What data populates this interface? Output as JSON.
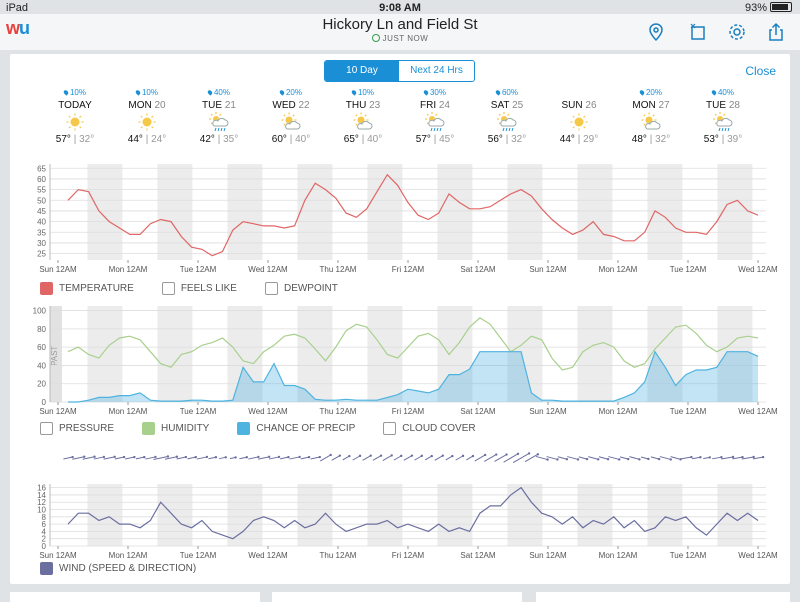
{
  "status": {
    "device": "iPad",
    "time": "9:08 AM",
    "battery": "93%"
  },
  "header": {
    "title": "Hickory Ln and Field St",
    "subtitle": "JUST NOW",
    "logo_w": "w",
    "logo_u": "u"
  },
  "tabs": {
    "ten_day": "10 Day",
    "next24": "Next 24 Hrs",
    "close": "Close"
  },
  "days": [
    {
      "name": "TODAY",
      "num": "",
      "pop": "10%",
      "hi": "57°",
      "lo": "32°",
      "icon": "sunny"
    },
    {
      "name": "MON",
      "num": "20",
      "pop": "10%",
      "hi": "44°",
      "lo": "24°",
      "icon": "sunny"
    },
    {
      "name": "TUE",
      "num": "21",
      "pop": "40%",
      "hi": "42°",
      "lo": "35°",
      "icon": "rain"
    },
    {
      "name": "WED",
      "num": "22",
      "pop": "20%",
      "hi": "60°",
      "lo": "40°",
      "icon": "partly"
    },
    {
      "name": "THU",
      "num": "23",
      "pop": "10%",
      "hi": "65°",
      "lo": "40°",
      "icon": "partly"
    },
    {
      "name": "FRI",
      "num": "24",
      "pop": "30%",
      "hi": "57°",
      "lo": "45°",
      "icon": "rain"
    },
    {
      "name": "SAT",
      "num": "25",
      "pop": "60%",
      "hi": "56°",
      "lo": "32°",
      "icon": "rain"
    },
    {
      "name": "SUN",
      "num": "26",
      "pop": "",
      "hi": "44°",
      "lo": "29°",
      "icon": "sunny"
    },
    {
      "name": "MON",
      "num": "27",
      "pop": "20%",
      "hi": "48°",
      "lo": "32°",
      "icon": "partly"
    },
    {
      "name": "TUE",
      "num": "28",
      "pop": "40%",
      "hi": "53°",
      "lo": "39°",
      "icon": "rain"
    }
  ],
  "xticks": [
    "Sun 12AM",
    "Mon 12AM",
    "Tue 12AM",
    "Wed 12AM",
    "Thu 12AM",
    "Fri 12AM",
    "Sat 12AM",
    "Sun 12AM",
    "Mon 12AM",
    "Tue 12AM",
    "Wed 12AM"
  ],
  "past_label": "PAST",
  "colors": {
    "temperature": "#e06666",
    "humidity": "#a8d08d",
    "precip": "#4fb3e0",
    "wind": "#6b6fa0",
    "accent": "#1a8fd6"
  },
  "chart_data": [
    {
      "type": "line",
      "title": "",
      "yticks": [
        25,
        30,
        35,
        40,
        45,
        50,
        55,
        60,
        65
      ],
      "ylim": [
        22,
        67
      ],
      "legend": [
        "TEMPERATURE",
        "FEELS LIKE",
        "DEWPOINT"
      ],
      "series": [
        {
          "name": "TEMPERATURE",
          "values": [
            50,
            55,
            54,
            45,
            40,
            37,
            34,
            34,
            39,
            41,
            40,
            33,
            28,
            27,
            24,
            26,
            36,
            40,
            39,
            38,
            38,
            37,
            38,
            50,
            58,
            55,
            51,
            44,
            42,
            46,
            54,
            62,
            57,
            49,
            43,
            41,
            44,
            53,
            49,
            46,
            46,
            47,
            50,
            53,
            55,
            52,
            46,
            41,
            37,
            34,
            36,
            40,
            34,
            33,
            31,
            31,
            35,
            45,
            42,
            37,
            35,
            35,
            34,
            40,
            48,
            50,
            45,
            43
          ]
        }
      ]
    },
    {
      "type": "area",
      "title": "",
      "yticks": [
        0,
        20,
        40,
        60,
        80,
        100
      ],
      "ylim": [
        0,
        105
      ],
      "legend": [
        "PRESSURE",
        "HUMIDITY",
        "CHANCE OF PRECIP",
        "CLOUD COVER"
      ],
      "series": [
        {
          "name": "HUMIDITY",
          "values": [
            55,
            60,
            52,
            48,
            62,
            70,
            72,
            68,
            55,
            42,
            38,
            52,
            55,
            62,
            65,
            70,
            60,
            45,
            42,
            55,
            62,
            72,
            74,
            70,
            58,
            45,
            60,
            78,
            85,
            82,
            68,
            52,
            48,
            60,
            72,
            75,
            68,
            52,
            65,
            82,
            92,
            85,
            70,
            55,
            62,
            72,
            68,
            48,
            35,
            38,
            55,
            62,
            65,
            60,
            45,
            38,
            42,
            58,
            70,
            82,
            84,
            75,
            62,
            55,
            60,
            70,
            72,
            70
          ]
        },
        {
          "name": "CHANCE OF PRECIP",
          "values": [
            0,
            0,
            2,
            5,
            5,
            7,
            7,
            10,
            2,
            1,
            1,
            1,
            2,
            2,
            1,
            1,
            2,
            38,
            22,
            22,
            42,
            18,
            18,
            14,
            3,
            2,
            2,
            3,
            2,
            2,
            2,
            5,
            8,
            14,
            12,
            10,
            14,
            30,
            30,
            36,
            55,
            55,
            55,
            55,
            55,
            10,
            2,
            2,
            1,
            1,
            1,
            1,
            1,
            1,
            5,
            10,
            22,
            55,
            38,
            18,
            30,
            35,
            35,
            38,
            55,
            55,
            55,
            50
          ]
        }
      ]
    },
    {
      "type": "line",
      "title": "",
      "yticks": [
        0,
        2,
        4,
        6,
        8,
        10,
        12,
        14,
        16
      ],
      "ylim": [
        0,
        17
      ],
      "legend": [
        "WIND (SPEED & DIRECTION)"
      ],
      "series": [
        {
          "name": "WIND (SPEED & DIRECTION)",
          "values": [
            6,
            9,
            9,
            7,
            8,
            6,
            6,
            5,
            7,
            12,
            9,
            6,
            5,
            7,
            4,
            3,
            2,
            4,
            7,
            8,
            7,
            5,
            7,
            5,
            6,
            9,
            6,
            4,
            5,
            6,
            6,
            7,
            5,
            6,
            5,
            4,
            6,
            4,
            5,
            4,
            9,
            11,
            11,
            14,
            16,
            12,
            9,
            8,
            6,
            8,
            5,
            7,
            6,
            8,
            5,
            7,
            4,
            5,
            8,
            7,
            8,
            5,
            3,
            6,
            9,
            7,
            9,
            7
          ]
        }
      ]
    }
  ]
}
